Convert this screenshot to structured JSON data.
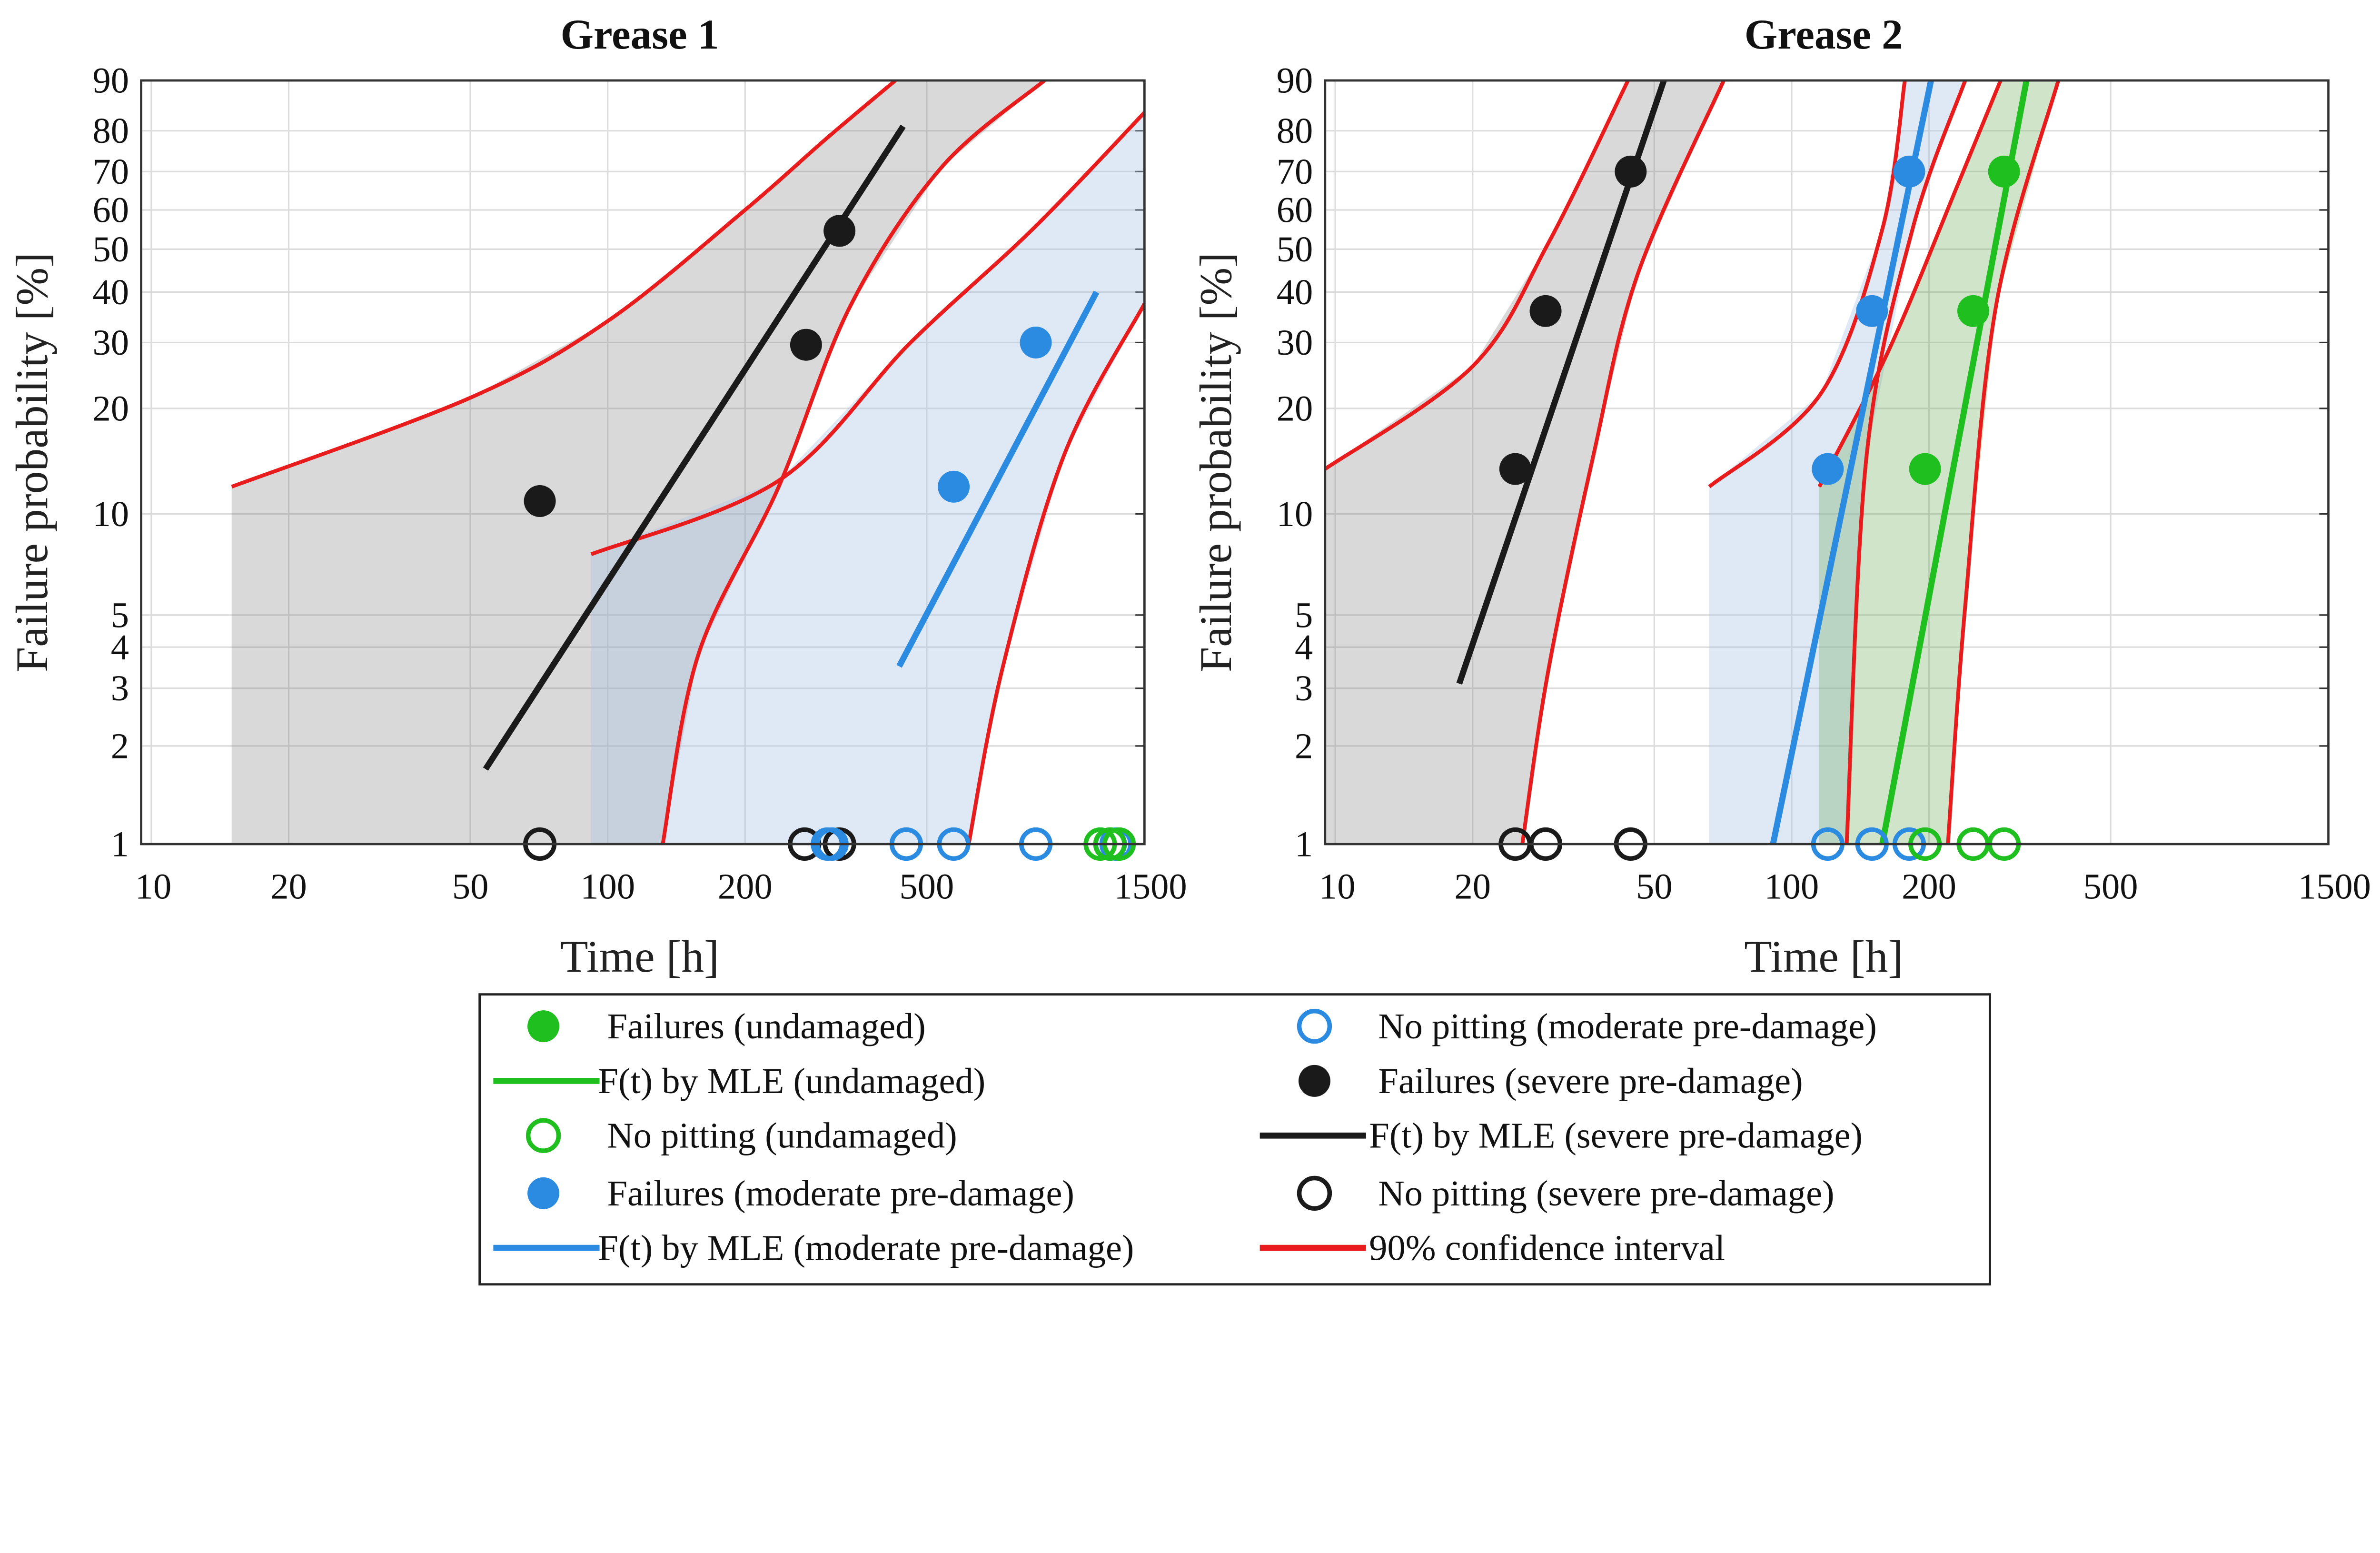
{
  "colors": {
    "black": "#1a1a1a",
    "blue": "#2b8be0",
    "green": "#1fbf1f",
    "red": "#e81c1c",
    "fill_black": "rgba(120,120,120,0.28)",
    "fill_blue": "rgba(170,195,230,0.38)",
    "fill_green": "rgba(110,170,90,0.32)"
  },
  "chart_data": [
    {
      "type": "scatter",
      "title": "Grease 1",
      "xlabel": "Time [h]",
      "ylabel": "Failure probability [%]",
      "xscale": "log",
      "yscale": "weibull",
      "xlim": [
        9.5,
        1500
      ],
      "ylim": [
        1,
        90
      ],
      "xticks": [
        10,
        20,
        50,
        100,
        200,
        500,
        1500
      ],
      "yticks": [
        1,
        2,
        3,
        4,
        5,
        10,
        20,
        30,
        40,
        50,
        60,
        70,
        80,
        90
      ],
      "grid": true,
      "groups": [
        {
          "name": "severe pre-damage",
          "color": "black",
          "failures": [
            [
              71,
              10.9
            ],
            [
              272,
              29.6
            ],
            [
              322,
              54.6
            ]
          ],
          "no_pitting": [
            71,
            270,
            322
          ],
          "mle": [
            [
              54,
              1.7
            ],
            [
              444,
              81
            ]
          ],
          "ci_upper": [
            [
              15,
              12
            ],
            [
              50,
              21.4
            ],
            [
              100,
              34
            ],
            [
              200,
              60
            ],
            [
              300,
              78
            ],
            [
              427,
              90
            ]
          ],
          "ci_lower": [
            [
              132,
              1
            ],
            [
              158,
              3.8
            ],
            [
              237,
              12
            ],
            [
              340,
              37
            ],
            [
              538,
              71
            ],
            [
              906,
              90
            ]
          ]
        },
        {
          "name": "moderate pre-damage",
          "color": "blue",
          "failures": [
            [
              573,
              12
            ],
            [
              867,
              30
            ]
          ],
          "no_pitting": [
            303,
            310,
            451,
            451,
            573,
            867,
            1262,
            1300
          ],
          "mle": [
            [
              435,
              3.5
            ],
            [
              1178,
              40
            ]
          ],
          "ci_upper": [
            [
              92,
              7.6
            ],
            [
              237,
              12.5
            ],
            [
              461,
              30
            ],
            [
              853,
              55
            ],
            [
              1500,
              84
            ]
          ],
          "ci_lower": [
            [
              618,
              1
            ],
            [
              731,
              3.4
            ],
            [
              1000,
              14.8
            ],
            [
              1500,
              37.5
            ]
          ]
        },
        {
          "name": "undamaged",
          "color": "green",
          "failures": [],
          "no_pitting": [
            1200,
            1260,
            1320
          ],
          "mle": null,
          "ci_upper": null,
          "ci_lower": null
        }
      ]
    },
    {
      "type": "scatter",
      "title": "Grease 2",
      "xlabel": "Time [h]",
      "ylabel": "Failure probability [%]",
      "xscale": "log",
      "yscale": "weibull",
      "xlim": [
        9.5,
        1500
      ],
      "ylim": [
        1,
        90
      ],
      "xticks": [
        10,
        20,
        50,
        100,
        200,
        500,
        1500
      ],
      "yticks": [
        1,
        2,
        3,
        4,
        5,
        10,
        20,
        30,
        40,
        50,
        60,
        70,
        80,
        90
      ],
      "grid": true,
      "groups": [
        {
          "name": "severe pre-damage",
          "color": "black",
          "failures": [
            [
              24.8,
              13.5
            ],
            [
              28.9,
              36
            ],
            [
              44.4,
              70
            ]
          ],
          "no_pitting": [
            24.8,
            28.9,
            44.4
          ],
          "mle": [
            [
              18.7,
              3.1
            ],
            [
              52.5,
              90
            ]
          ],
          "ci_upper": [
            [
              9.5,
              13.5
            ],
            [
              20,
              26
            ],
            [
              29.3,
              51.5
            ],
            [
              43.8,
              90
            ]
          ],
          "ci_lower": [
            [
              25.7,
              1
            ],
            [
              29.3,
              3.4
            ],
            [
              36.8,
              14.8
            ],
            [
              46,
              44
            ],
            [
              71,
              90
            ]
          ]
        },
        {
          "name": "moderate pre-damage",
          "color": "blue",
          "failures": [
            [
              120,
              13.5
            ],
            [
              150,
              36
            ],
            [
              181,
              70
            ]
          ],
          "no_pitting": [
            120,
            150,
            181
          ],
          "mle": [
            [
              91,
              1
            ],
            [
              202,
              90
            ]
          ],
          "ci_upper": [
            [
              66,
              12
            ],
            [
              116,
              22
            ],
            [
              158,
              55
            ],
            [
              177,
              90
            ]
          ],
          "ci_lower": [
            [
              132,
              1
            ],
            [
              146,
              14.8
            ],
            [
              184,
              55
            ],
            [
              240,
              90
            ]
          ]
        },
        {
          "name": "undamaged",
          "color": "green",
          "failures": [
            [
              196,
              13.5
            ],
            [
              250,
              36
            ],
            [
              292,
              70
            ]
          ],
          "no_pitting": [
            196,
            250,
            292
          ],
          "mle": [
            [
              158,
              1
            ],
            [
              327,
              90
            ]
          ],
          "ci_upper": [
            [
              115,
              12
            ],
            [
              164,
              29
            ],
            [
              232,
              67
            ],
            [
              287,
              90
            ]
          ],
          "ci_lower": [
            [
              220,
              1
            ],
            [
              240,
              5.3
            ],
            [
              281,
              37.5
            ],
            [
              384,
              90
            ]
          ]
        }
      ]
    }
  ],
  "legend": {
    "items": [
      {
        "label": "Failures (undamaged)",
        "marker": "dot",
        "color": "green"
      },
      {
        "label": "F(t) by MLE (undamaged)",
        "marker": "line",
        "color": "green"
      },
      {
        "label": "No pitting (undamaged)",
        "marker": "ring",
        "color": "green"
      },
      {
        "label": "Failures (moderate pre-damage)",
        "marker": "dot",
        "color": "blue"
      },
      {
        "label": "F(t) by MLE (moderate pre-damage)",
        "marker": "line",
        "color": "blue"
      },
      {
        "label": "No pitting (moderate pre-damage)",
        "marker": "ring",
        "color": "blue"
      },
      {
        "label": "Failures (severe pre-damage)",
        "marker": "dot",
        "color": "black"
      },
      {
        "label": "F(t) by MLE (severe pre-damage)",
        "marker": "line",
        "color": "black"
      },
      {
        "label": "No pitting (severe pre-damage)",
        "marker": "ring",
        "color": "black"
      },
      {
        "label": "90% confidence interval",
        "marker": "line",
        "color": "red"
      }
    ]
  }
}
